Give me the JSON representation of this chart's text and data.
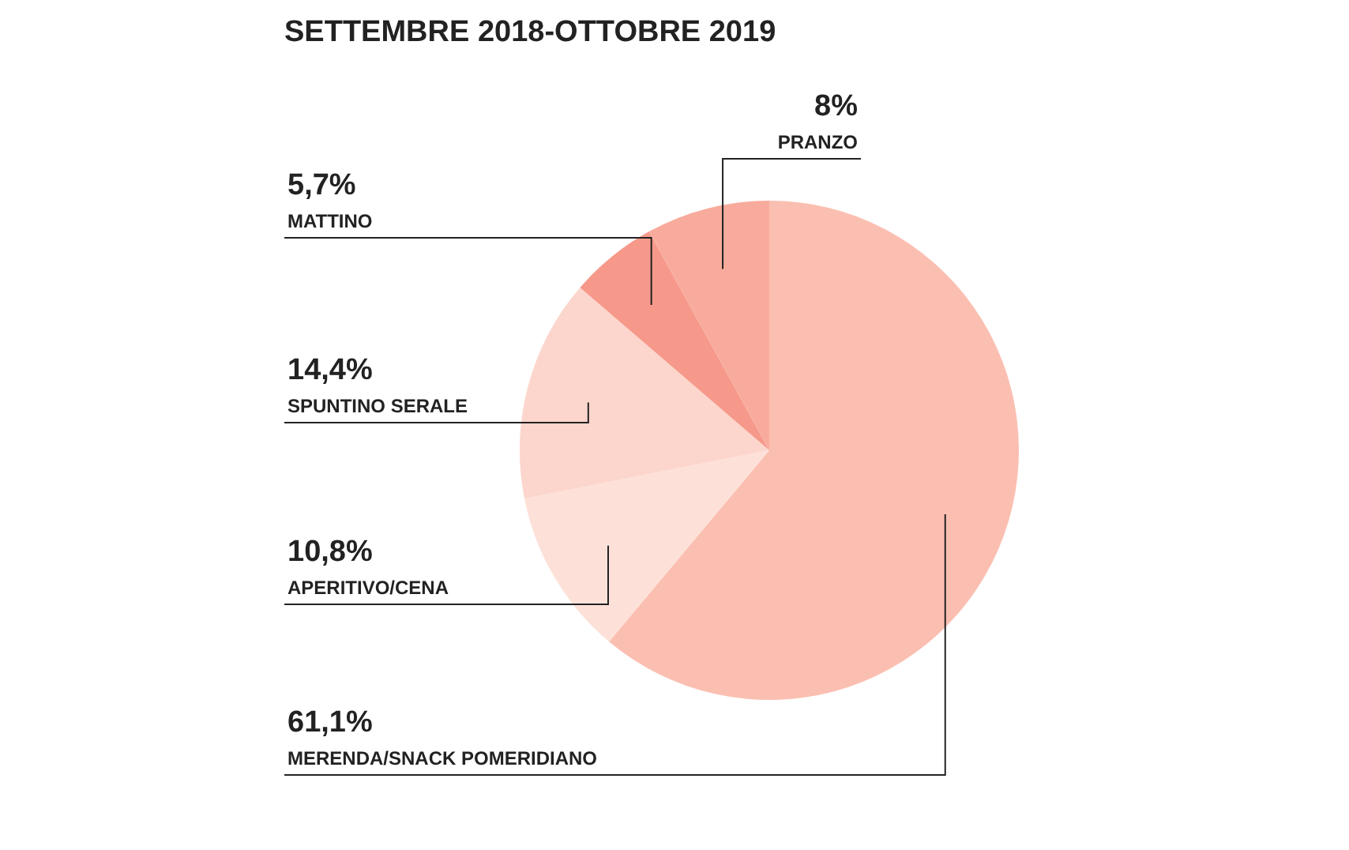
{
  "chart_data": {
    "type": "pie",
    "title": "SETTEMBRE 2018-OTTOBRE 2019",
    "categories": [
      "MERENDA/SNACK POMERIDIANO",
      "APERITIVO/CENA",
      "SPUNTINO SERALE",
      "MATTINO",
      "PRANZO"
    ],
    "values": [
      61.1,
      10.8,
      14.4,
      5.7,
      8
    ],
    "value_labels": [
      "61,1%",
      "10,8%",
      "14,4%",
      "5,7%",
      "8%"
    ],
    "colors": [
      "#fbbfb1",
      "#fde1d9",
      "#fcd6cc",
      "#f6998b",
      "#f8ab9c"
    ],
    "legend": false
  }
}
